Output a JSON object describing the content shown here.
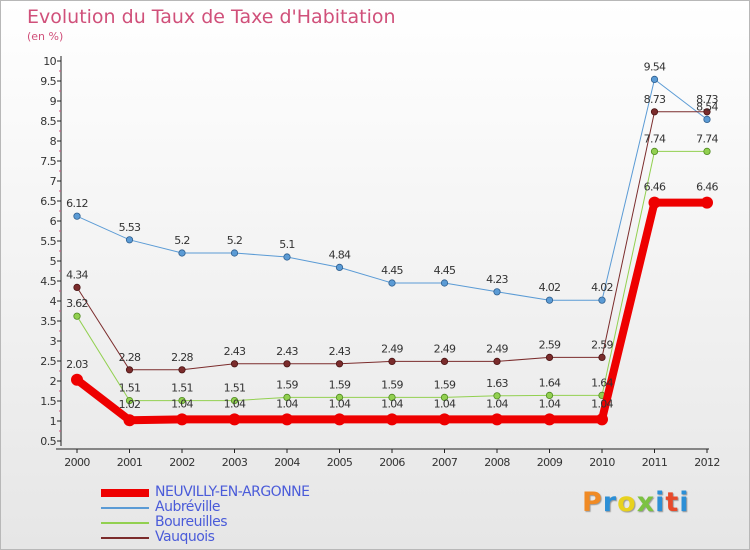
{
  "header": {
    "title": "Evolution du Taux de Taxe d'Habitation",
    "subtitle": "(en %)"
  },
  "logo": {
    "letters": [
      "P",
      "r",
      "o",
      "x",
      "i",
      "t",
      "i"
    ],
    "colors": [
      "#f08a24",
      "#2c8fd6",
      "#e8d21e",
      "#7cc242",
      "#2c8fd6",
      "#e84a2a",
      "#2c8fd6"
    ]
  },
  "chart_data": {
    "type": "line",
    "title": "Evolution du Taux de Taxe d'Habitation",
    "ylabel": "(en %)",
    "xlabel": "",
    "x": [
      "2000",
      "2001",
      "2002",
      "2003",
      "2004",
      "2005",
      "2006",
      "2007",
      "2008",
      "2009",
      "2010",
      "2011",
      "2012"
    ],
    "ylim": [
      0.5,
      10
    ],
    "yticks": [
      "0.5",
      "1",
      "1.5",
      "2",
      "2.5",
      "3",
      "3.5",
      "4",
      "4.5",
      "5",
      "5.5",
      "6",
      "6.5",
      "7",
      "7.5",
      "8",
      "8.5",
      "9",
      "9.5",
      "10"
    ],
    "grid": false,
    "legend": "bottom-left",
    "series": [
      {
        "name": "NEUVILLY-EN-ARGONNE",
        "color": "#ee0000",
        "values": [
          2.03,
          1.02,
          1.04,
          1.04,
          1.04,
          1.04,
          1.04,
          1.04,
          1.04,
          1.04,
          1.04,
          6.46,
          6.46
        ],
        "labels": [
          "2.03",
          "1.02",
          "1.04",
          "1.04",
          "1.04",
          "1.04",
          "1.04",
          "1.04",
          "1.04",
          "1.04",
          "1.04",
          "6.46",
          "6.46"
        ]
      },
      {
        "name": "Aubréville",
        "color": "#5b9bd5",
        "values": [
          6.12,
          5.53,
          5.2,
          5.2,
          5.1,
          4.84,
          4.45,
          4.45,
          4.23,
          4.02,
          4.02,
          9.54,
          8.54
        ],
        "labels": [
          "6.12",
          "5.53",
          "5.2",
          "5.2",
          "5.1",
          "4.84",
          "4.45",
          "4.45",
          "4.23",
          "4.02",
          "4.02",
          "9.54",
          "8.54"
        ]
      },
      {
        "name": "Boureuilles",
        "color": "#92d050",
        "values": [
          3.62,
          1.51,
          1.51,
          1.51,
          1.59,
          1.59,
          1.59,
          1.59,
          1.63,
          1.64,
          1.64,
          7.74,
          7.74
        ],
        "labels": [
          "3.62",
          "1.51",
          "1.51",
          "1.51",
          "1.59",
          "1.59",
          "1.59",
          "1.59",
          "1.63",
          "1.64",
          "1.64",
          "7.74",
          "7.74"
        ]
      },
      {
        "name": "Vauquois",
        "color": "#7b2c2c",
        "values": [
          4.34,
          2.28,
          2.28,
          2.43,
          2.43,
          2.43,
          2.49,
          2.49,
          2.49,
          2.59,
          2.59,
          8.73,
          8.73
        ],
        "labels": [
          "4.34",
          "2.28",
          "2.28",
          "2.43",
          "2.43",
          "2.43",
          "2.49",
          "2.49",
          "2.49",
          "2.59",
          "2.59",
          "8.73",
          "8.73"
        ]
      }
    ]
  }
}
